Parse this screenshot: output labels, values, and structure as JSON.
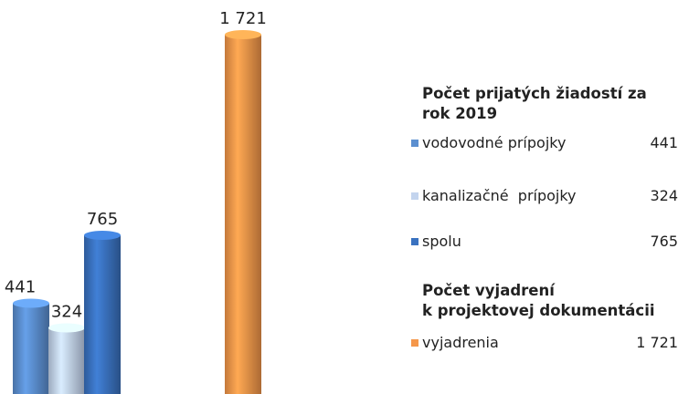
{
  "chart_data": {
    "type": "bar",
    "categories": [
      "vodovodné prípojky",
      "kanalizačné  prípojky",
      "spolu",
      "vyjadrenia"
    ],
    "values": [
      441,
      324,
      765,
      1721
    ],
    "value_labels": [
      "441",
      "324",
      "765",
      "1 721"
    ],
    "colors": [
      "#5b8fd0",
      "#c3d4ee",
      "#3a72c0",
      "#f5974a"
    ],
    "legend_titles": [
      "Počet prijatých žiadostí za\nrok 2019",
      "Počet vyjadrení\nk projektovej dokumentácii"
    ]
  }
}
